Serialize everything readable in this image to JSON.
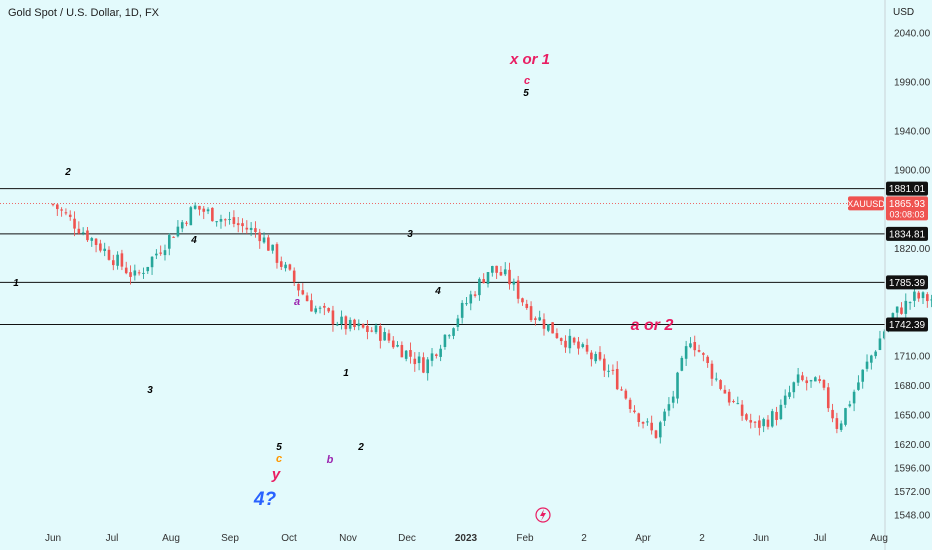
{
  "header": {
    "title": "Gold Spot / U.S. Dollar, 1D, FX",
    "currency": "USD"
  },
  "chart_data": {
    "type": "candlestick",
    "symbol": "XAUUSD",
    "title": "Gold Spot / U.S. Dollar, 1D, FX",
    "ylim": [
      1535,
      2062
    ],
    "y_ticks": [
      1548,
      1572,
      1596,
      1620,
      1650,
      1680,
      1710,
      1820,
      1900,
      1940,
      1990,
      2040
    ],
    "x_ticks": [
      "Jun",
      "Jul",
      "Aug",
      "Sep",
      "Oct",
      "Nov",
      "Dec",
      "2023",
      "Feb",
      "2",
      "Apr",
      "2",
      "Jun",
      "Jul",
      "Aug"
    ],
    "current_price": {
      "symbol": "XAUUSD",
      "price": "1865.93",
      "countdown": "03:08:03"
    },
    "horizontal_levels": [
      1881.01,
      1834.81,
      1785.39,
      1742.39
    ],
    "level_labels": [
      "1881.01",
      "1834.81",
      "1785.39",
      "1742.39"
    ],
    "colors": {
      "up": "#26a69a",
      "down": "#ef5350",
      "background": "#e3fafc",
      "wave_pink": "#e91e63",
      "wave_purple": "#9c27b0",
      "wave_blue": "#2962ff",
      "wave_orange": "#ff9800",
      "pattern_fill": "#c5cae9"
    },
    "wave_labels": [
      {
        "text": "1",
        "color": "#000000",
        "style": "italic"
      },
      {
        "text": "2",
        "color": "#000000",
        "style": "italic"
      },
      {
        "text": "3",
        "color": "#000000",
        "style": "italic"
      },
      {
        "text": "4",
        "color": "#000000",
        "style": "italic"
      },
      {
        "text": "5",
        "color": "#000000",
        "style": "italic"
      },
      {
        "text": "c",
        "color": "#ff9800",
        "style": "italic"
      },
      {
        "text": "y",
        "color": "#e91e63",
        "style": "italic"
      },
      {
        "text": "4?",
        "color": "#2962ff",
        "style": "italic"
      },
      {
        "text": "a",
        "color": "#9c27b0",
        "style": "italic"
      },
      {
        "text": "b",
        "color": "#9c27b0",
        "style": "italic"
      },
      {
        "text": "1",
        "color": "#000000",
        "style": "italic"
      },
      {
        "text": "2",
        "color": "#000000",
        "style": "italic"
      },
      {
        "text": "3",
        "color": "#000000",
        "style": "italic"
      },
      {
        "text": "4",
        "color": "#000000",
        "style": "italic"
      },
      {
        "text": "5",
        "color": "#000000",
        "style": "italic"
      },
      {
        "text": "c",
        "color": "#e91e63",
        "style": "italic"
      },
      {
        "text": "x or 1",
        "color": "#e91e63",
        "style": "italic"
      },
      {
        "text": "a or 2",
        "color": "#e91e63",
        "style": "italic"
      }
    ],
    "anchors": [
      [
        1.0,
        1865
      ],
      [
        2.4,
        1790
      ],
      [
        3.4,
        1862
      ],
      [
        4.5,
        1835
      ],
      [
        5.4,
        1760
      ],
      [
        6.0,
        1740
      ],
      [
        6.5,
        1735
      ],
      [
        7.3,
        1700
      ],
      [
        7.9,
        1755
      ],
      [
        8.4,
        1800
      ],
      [
        8.7,
        1790
      ],
      [
        9.1,
        1755
      ],
      [
        9.6,
        1730
      ],
      [
        10.1,
        1710
      ],
      [
        10.5,
        1690
      ],
      [
        10.8,
        1660
      ],
      [
        11.2,
        1628
      ],
      [
        11.5,
        1668
      ],
      [
        11.8,
        1730
      ],
      [
        12.2,
        1690
      ],
      [
        12.6,
        1655
      ],
      [
        12.9,
        1638
      ],
      [
        13.3,
        1652
      ],
      [
        13.6,
        1685
      ],
      [
        14.0,
        1680
      ],
      [
        14.3,
        1638
      ],
      [
        14.7,
        1690
      ],
      [
        15.2,
        1750
      ],
      [
        15.6,
        1770
      ],
      [
        15.95,
        1768
      ],
      [
        16.3,
        1770
      ],
      [
        16.8,
        1775
      ],
      [
        17.3,
        1795
      ],
      [
        17.7,
        1815
      ],
      [
        18.15,
        1860
      ],
      [
        18.6,
        1900
      ],
      [
        19.0,
        1925
      ],
      [
        19.6,
        1940
      ],
      [
        19.95,
        1958
      ],
      [
        20.3,
        1880
      ],
      [
        20.55,
        1866
      ]
    ],
    "projection_path": [
      [
        20.55,
        1866
      ],
      [
        20.85,
        1835
      ],
      [
        21.35,
        1881
      ],
      [
        22.1,
        1788
      ]
    ],
    "dashed_projection": [
      [
        21.6,
        1881
      ],
      [
        22.9,
        1742.39
      ]
    ],
    "pattern_triangles": [
      [
        [
          16.0,
          1755
        ],
        [
          19.8,
          1948
        ],
        [
          20.9,
          1835
        ]
      ],
      [
        [
          20.9,
          1835
        ],
        [
          21.6,
          1881
        ],
        [
          22.9,
          1742.39
        ]
      ]
    ],
    "event_icon": "lightning-icon"
  }
}
